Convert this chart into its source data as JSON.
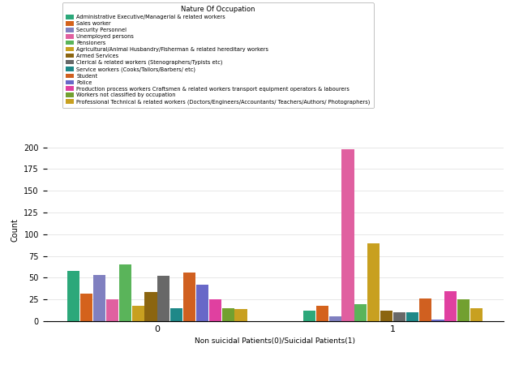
{
  "title": "Nature Of Occupation",
  "xlabel": "Non suicidal Patients(0)/Suicidal Patients(1)",
  "ylabel": "Count",
  "categories": [
    "0",
    "1"
  ],
  "legend_labels": [
    "Administrative Executive/Managerial & related workers",
    "Sales worker",
    "Security Personnel",
    "Unemployed persons",
    "Pensioners",
    "Agricultural/Animal Husbandry/Fisherman & related hereditary workers",
    "Armed Services",
    "Clerical & related workers (Stenographers/Typists etc)",
    "Service workers (Cooks/Tailors/Barbers/ etc)",
    "Student",
    "Police",
    "Production process workers Craftsmen & related workers transport equipment operators & labourers",
    "Workers not classified by occupation",
    "Professional Technical & related workers (Doctors/Engineers/Accountants/ Teachers/Authors/ Photographers)"
  ],
  "colors": [
    "#2ca87a",
    "#d4621c",
    "#8080c0",
    "#e060a0",
    "#5ab45a",
    "#c8a020",
    "#8b6510",
    "#686868",
    "#1e8888",
    "#d06020",
    "#6868c8",
    "#e040a0",
    "#72a030",
    "#c8a020"
  ],
  "data_0": [
    58,
    32,
    53,
    25,
    65,
    18,
    34,
    52,
    15,
    56,
    42,
    25,
    15,
    14
  ],
  "data_1": [
    12,
    18,
    6,
    198,
    20,
    90,
    12,
    10,
    10,
    26,
    2,
    35,
    25,
    15
  ],
  "ylim": [
    0,
    210
  ],
  "yticks": [
    0,
    25,
    50,
    75,
    100,
    125,
    150,
    175,
    200
  ]
}
